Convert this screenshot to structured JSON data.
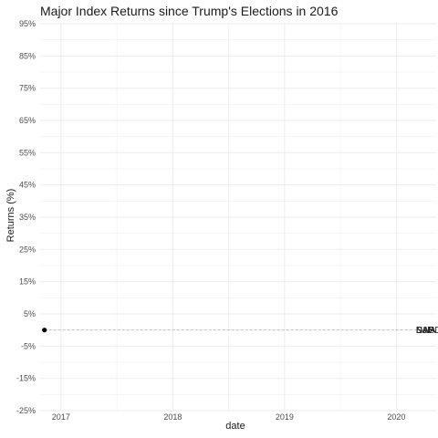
{
  "chart_data": {
    "type": "line",
    "title": "Major Index Returns since Trump's Elections in 2016",
    "xlabel": "date",
    "ylabel": "Returns (%)",
    "x_ticks": [
      "2017",
      "2018",
      "2019",
      "2020"
    ],
    "y_ticks": [
      "95%",
      "85%",
      "75%",
      "65%",
      "55%",
      "45%",
      "35%",
      "25%",
      "15%",
      "5%",
      "-5%",
      "-15%",
      "-25%"
    ],
    "y_tick_values": [
      95,
      85,
      75,
      65,
      55,
      45,
      35,
      25,
      15,
      5,
      -5,
      -15,
      -25
    ],
    "ylim": [
      -25,
      95
    ],
    "xlim": [
      "2016-10-25",
      "2020-05-10"
    ],
    "grid": true,
    "start_point": {
      "x": "2016-11-08",
      "y": 0
    },
    "reference_line": {
      "y": 0,
      "from": "2016-11-08",
      "to": "2020-04-20",
      "style": "dashed"
    },
    "end_labels_overlapping": true,
    "end_labels_x": "2020-03-05",
    "end_labels": [
      "DJIA",
      "S&P",
      "NASDAQ"
    ],
    "colors": {
      "grid": "#ebebeb",
      "reference_line": "#b3b3b3",
      "point": "#000000"
    }
  }
}
